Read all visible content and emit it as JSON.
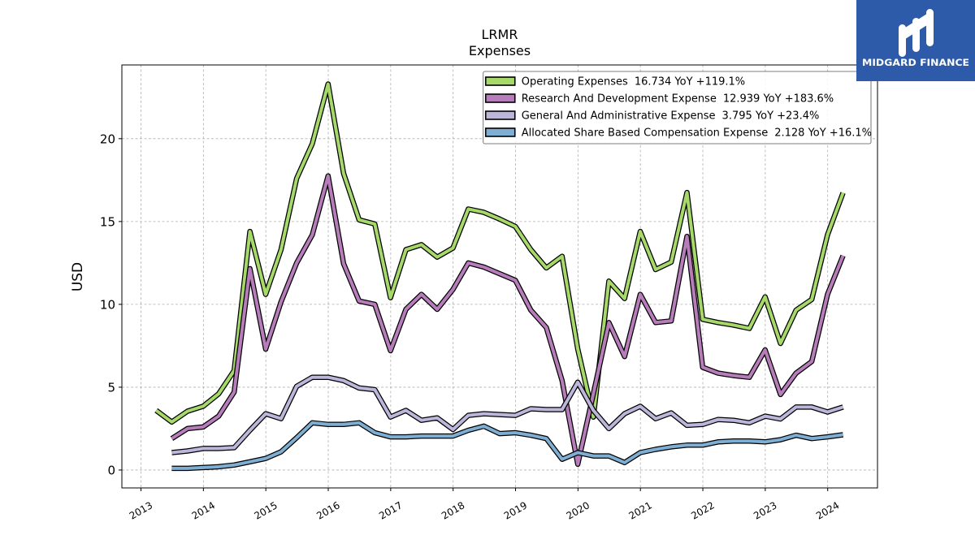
{
  "logo": {
    "brand_text": "MIDGARD FINANCE",
    "background_color": "#2d5ba9"
  },
  "chart_data": {
    "type": "line",
    "title": "LRMR",
    "subtitle": "Expenses",
    "ylabel": "USD",
    "xlim": [
      "2012-09-11",
      "2024-10-19"
    ],
    "ylim": [
      -1.08,
      24.45
    ],
    "xticks": [
      "2013",
      "2014",
      "2015",
      "2016",
      "2017",
      "2018",
      "2019",
      "2020",
      "2021",
      "2022",
      "2023",
      "2024"
    ],
    "yticks": [
      0,
      5,
      10,
      15,
      20
    ],
    "grid": true,
    "legend_position": "top-right",
    "x": [
      "2013-03-31",
      "2013-06-30",
      "2013-09-30",
      "2013-12-31",
      "2014-03-31",
      "2014-06-30",
      "2014-09-30",
      "2014-12-31",
      "2015-03-31",
      "2015-06-30",
      "2015-09-30",
      "2015-12-31",
      "2016-03-31",
      "2016-06-30",
      "2016-09-30",
      "2016-12-31",
      "2017-03-31",
      "2017-06-30",
      "2017-09-30",
      "2017-12-31",
      "2018-03-31",
      "2018-06-30",
      "2018-09-30",
      "2018-12-31",
      "2019-03-31",
      "2019-06-30",
      "2019-09-30",
      "2019-12-31",
      "2020-03-31",
      "2020-06-30",
      "2020-09-30",
      "2020-12-31",
      "2021-03-31",
      "2021-06-30",
      "2021-09-30",
      "2021-12-31",
      "2022-03-31",
      "2022-06-30",
      "2022-09-30",
      "2022-12-31",
      "2023-03-31",
      "2023-06-30",
      "2023-09-30",
      "2023-12-31",
      "2024-03-31"
    ],
    "series": [
      {
        "name": "Operating Expenses",
        "legend_stats": "16.734 YoY +119.1%",
        "color": "#a6d96a",
        "values": [
          3.6,
          2.9,
          3.55,
          3.85,
          4.6,
          6.0,
          14.4,
          10.6,
          13.3,
          17.6,
          19.7,
          23.3,
          17.9,
          15.1,
          14.85,
          10.4,
          13.3,
          13.6,
          12.85,
          13.4,
          15.75,
          15.55,
          15.15,
          14.7,
          13.3,
          12.2,
          12.9,
          7.3,
          3.2,
          11.4,
          10.35,
          14.4,
          12.1,
          12.55,
          16.75,
          9.1,
          8.9,
          8.75,
          8.55,
          10.45,
          7.64,
          9.65,
          10.3,
          14.2,
          16.73
        ]
      },
      {
        "name": "Research And Development Expense",
        "legend_stats": "12.939 YoY +183.6%",
        "color": "#b77cba",
        "values": [
          null,
          1.9,
          2.5,
          2.6,
          3.25,
          4.7,
          12.15,
          7.3,
          10.15,
          12.5,
          14.2,
          17.75,
          12.45,
          10.2,
          10.0,
          7.2,
          9.7,
          10.6,
          9.7,
          10.9,
          12.5,
          12.25,
          11.85,
          11.45,
          9.65,
          8.6,
          5.4,
          0.35,
          4.6,
          8.9,
          6.85,
          10.6,
          8.9,
          9.0,
          14.1,
          6.2,
          5.85,
          5.7,
          5.6,
          7.25,
          4.56,
          5.85,
          6.55,
          10.6,
          12.94
        ]
      },
      {
        "name": "General And Administrative Expense",
        "legend_stats": "3.795 YoY +23.4%",
        "color": "#bcb6da",
        "values": [
          null,
          1.05,
          1.15,
          1.3,
          1.3,
          1.35,
          2.4,
          3.4,
          3.1,
          5.05,
          5.6,
          5.6,
          5.4,
          4.95,
          4.85,
          3.2,
          3.6,
          3.0,
          3.15,
          2.45,
          3.3,
          3.4,
          3.35,
          3.3,
          3.7,
          3.65,
          3.65,
          5.3,
          3.6,
          2.5,
          3.4,
          3.85,
          3.1,
          3.45,
          2.7,
          2.75,
          3.05,
          3.0,
          2.85,
          3.25,
          3.08,
          3.8,
          3.8,
          3.5,
          3.8
        ]
      },
      {
        "name": "Allocated Share Based Compensation Expense",
        "legend_stats": "2.128 YoY +16.1%",
        "color": "#7faed3",
        "values": [
          null,
          0.1,
          0.1,
          0.15,
          0.2,
          0.3,
          0.5,
          0.7,
          1.1,
          1.95,
          2.85,
          2.75,
          2.75,
          2.85,
          2.25,
          2.0,
          2.0,
          2.05,
          2.05,
          2.05,
          2.4,
          2.65,
          2.2,
          2.25,
          2.1,
          1.9,
          0.65,
          1.05,
          0.85,
          0.85,
          0.45,
          1.05,
          1.25,
          1.4,
          1.5,
          1.5,
          1.7,
          1.75,
          1.75,
          1.7,
          1.83,
          2.1,
          1.9,
          2.0,
          2.13
        ]
      }
    ]
  }
}
